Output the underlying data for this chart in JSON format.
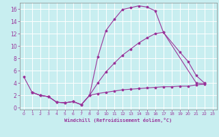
{
  "xlabel": "Windchill (Refroidissement éolien,°C)",
  "background_color": "#c8eef0",
  "grid_color": "#ffffff",
  "line_color": "#993399",
  "xlim": [
    -0.5,
    23.5
  ],
  "ylim": [
    -0.3,
    17.0
  ],
  "xticks": [
    0,
    1,
    2,
    3,
    4,
    5,
    6,
    7,
    8,
    9,
    10,
    11,
    12,
    13,
    14,
    15,
    16,
    17,
    18,
    19,
    20,
    21,
    22,
    23
  ],
  "yticks": [
    0,
    2,
    4,
    6,
    8,
    10,
    12,
    14,
    16
  ],
  "curve1_x": [
    0,
    1,
    2,
    3,
    4,
    5,
    6,
    7,
    8,
    9,
    10,
    11,
    12,
    13,
    14,
    15,
    16,
    17,
    21,
    22
  ],
  "curve1_y": [
    5.0,
    2.5,
    2.0,
    1.8,
    0.9,
    0.8,
    1.0,
    0.5,
    2.0,
    8.2,
    12.5,
    14.3,
    15.9,
    16.2,
    16.5,
    16.3,
    15.7,
    12.2,
    4.0,
    3.9
  ],
  "curve2_x": [
    1,
    2,
    3,
    4,
    5,
    6,
    7,
    8,
    9,
    10,
    11,
    12,
    13,
    14,
    15,
    16,
    17,
    19,
    20,
    21,
    22
  ],
  "curve2_y": [
    2.5,
    2.0,
    1.8,
    0.9,
    0.8,
    1.0,
    0.5,
    2.0,
    4.0,
    5.8,
    7.2,
    8.5,
    9.5,
    10.5,
    11.3,
    12.0,
    12.2,
    9.0,
    7.5,
    5.2,
    4.0
  ],
  "curve3_x": [
    1,
    2,
    3,
    4,
    5,
    6,
    7,
    8,
    9,
    10,
    11,
    12,
    13,
    14,
    15,
    16,
    17,
    18,
    19,
    20,
    21,
    22
  ],
  "curve3_y": [
    2.5,
    2.0,
    1.8,
    0.9,
    0.8,
    1.0,
    0.5,
    2.0,
    2.3,
    2.5,
    2.7,
    2.9,
    3.0,
    3.1,
    3.2,
    3.3,
    3.4,
    3.4,
    3.5,
    3.5,
    3.7,
    3.8
  ]
}
